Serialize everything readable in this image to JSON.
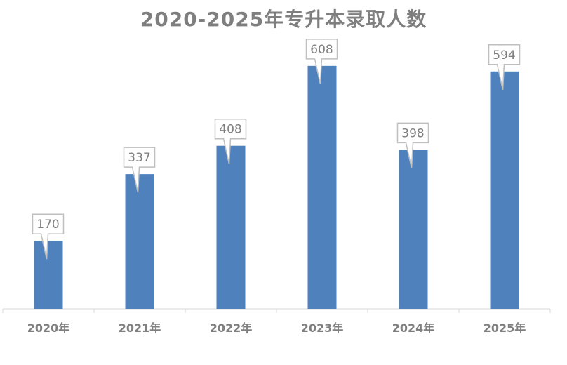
{
  "chart_data": {
    "type": "bar",
    "title": "2020-2025年专升本录取人数",
    "categories": [
      "2020年",
      "2021年",
      "2022年",
      "2023年",
      "2024年",
      "2025年"
    ],
    "values": [
      170,
      337,
      408,
      608,
      398,
      594
    ],
    "xlabel": "",
    "ylabel": "",
    "ylim": [
      0,
      620
    ],
    "grid": false,
    "legend": "none",
    "data_labels": true,
    "colors": {
      "bar": "#4f81bd",
      "label_text": "#7f7f7f",
      "callout_border": "#bfbfbf",
      "axis": "#d9d9d9"
    }
  }
}
